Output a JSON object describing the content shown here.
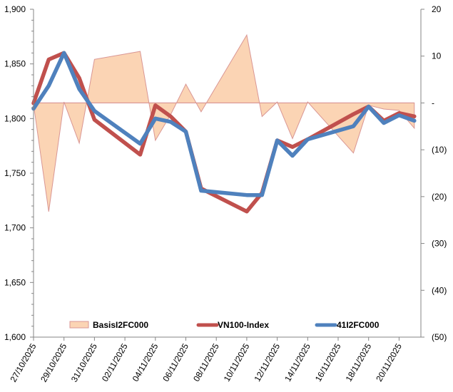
{
  "chart_data": {
    "type": "line",
    "title": "",
    "xlabel": "",
    "ylabel": "",
    "y2label": "",
    "x": [
      "27/10/2025",
      "28/10/2025",
      "29/10/2025",
      "30/10/2025",
      "31/10/2025",
      "03/11/2025",
      "04/11/2025",
      "05/11/2025",
      "06/11/2025",
      "07/11/2025",
      "10/11/2025",
      "11/11/2025",
      "12/11/2025",
      "13/11/2025",
      "14/11/2025",
      "17/11/2025",
      "18/11/2025",
      "19/11/2025",
      "20/11/2025",
      "21/11/2025"
    ],
    "x_day_offsets": [
      0,
      1,
      2,
      3,
      4,
      7,
      8,
      9,
      10,
      11,
      14,
      15,
      16,
      17,
      18,
      21,
      22,
      23,
      24,
      25
    ],
    "x_ticks": [
      "27/10/2025",
      "29/10/2025",
      "31/10/2025",
      "02/11/2025",
      "04/11/2025",
      "06/11/2025",
      "08/11/2025",
      "10/11/2025",
      "12/11/2025",
      "14/11/2025",
      "16/11/2025",
      "18/11/2025",
      "20/11/2025"
    ],
    "ylim": [
      1600,
      1900
    ],
    "y_ticks": [
      "1,600",
      "1,650",
      "1,700",
      "1,750",
      "1,800",
      "1,850",
      "1,900"
    ],
    "y2lim": [
      -50,
      20
    ],
    "y2_ticks": [
      "(50)",
      "(40)",
      "(30)",
      "(20)",
      "(10)",
      "-",
      "10",
      "20"
    ],
    "legend_position": "bottom-inside",
    "grid": false,
    "series": [
      {
        "name": "BasisI2FC000",
        "type": "area",
        "axis": "right",
        "color": "#FBD4B4",
        "edge_color": "#D99694",
        "values": [
          -0.3,
          -23.2,
          0.2,
          -8.6,
          9.3,
          11.0,
          -8.0,
          -2.5,
          4.0,
          -1.9,
          14.5,
          -2.9,
          0.2,
          -7.6,
          0.2,
          -10.7,
          -0.5,
          -1.3,
          -1.6,
          -5.4
        ]
      },
      {
        "name": "VN100-Index",
        "type": "line",
        "axis": "left",
        "color": "#C0504D",
        "values": [
          1814,
          1854,
          1860,
          1837,
          1799,
          1767,
          1812,
          1802,
          1788,
          1736,
          1715,
          1732,
          1780,
          1774,
          1781,
          1804,
          1811,
          1798,
          1805,
          1802
        ]
      },
      {
        "name": "41I2FC000",
        "type": "line",
        "axis": "left",
        "color": "#4F81BD",
        "values": [
          1809,
          1830,
          1860,
          1827,
          1807,
          1777,
          1800,
          1797,
          1788,
          1734,
          1730,
          1730,
          1780,
          1766,
          1781,
          1793,
          1811,
          1796,
          1803,
          1798
        ]
      }
    ]
  }
}
